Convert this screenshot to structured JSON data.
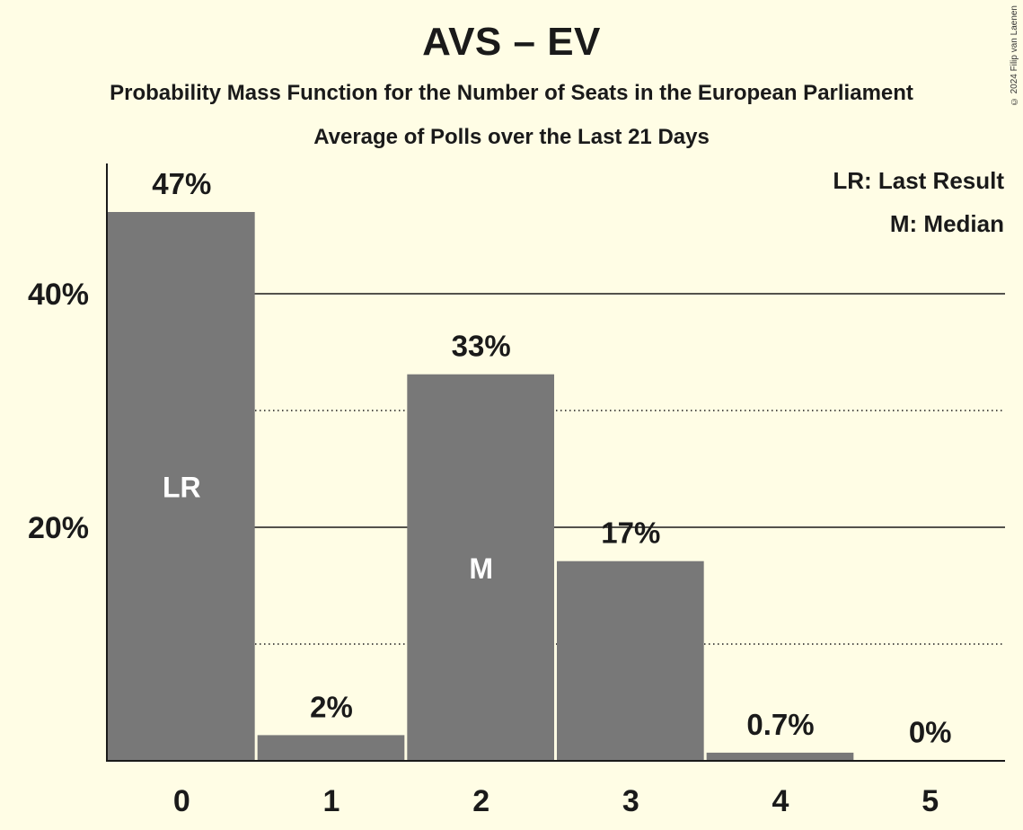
{
  "chart_data": {
    "type": "bar",
    "title": "AVS – EV",
    "subtitle": "Probability Mass Function for the Number of Seats in the European Parliament",
    "subtitle2": "Average of Polls over the Last 21 Days",
    "categories": [
      "0",
      "1",
      "2",
      "3",
      "4",
      "5"
    ],
    "values": [
      47,
      2.2,
      33.1,
      17.1,
      0.7,
      0.04
    ],
    "value_labels": [
      "47%",
      "2%",
      "33%",
      "17%",
      "0.7%",
      "0%"
    ],
    "bar_annotations": [
      {
        "category": "0",
        "text": "LR"
      },
      {
        "category": "2",
        "text": "M"
      }
    ],
    "legend": [
      "LR: Last Result",
      "M: Median"
    ],
    "legend_placement": "top-right",
    "yticks": [
      {
        "value": 20,
        "label": "20%"
      },
      {
        "value": 40,
        "label": "40%"
      }
    ],
    "minor_gridlines": [
      10,
      30
    ],
    "ylim": [
      0,
      51
    ],
    "xlabel": "",
    "ylabel": "",
    "colors": {
      "bar": "#787878",
      "background": "#fffde5",
      "text": "#1a1a1a",
      "annotation": "#ffffff"
    }
  },
  "copyright": "© 2024 Filip van Laenen"
}
